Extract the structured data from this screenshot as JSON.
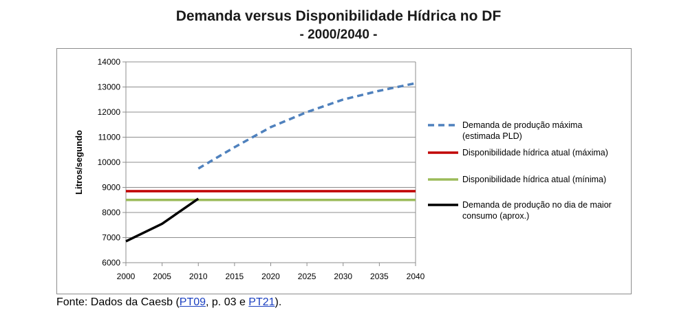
{
  "title": {
    "line1": "Demanda versus Disponibilidade Hídrica no DF",
    "line2": "- 2000/2040 -"
  },
  "source": {
    "prefix": "Fonte: Dados da Caesb (",
    "link1": "PT09",
    "middle": ", p. 03 e ",
    "link2": "PT21",
    "suffix": ")."
  },
  "chart_data": {
    "type": "line",
    "title": "Demanda versus Disponibilidade Hídrica no DF - 2000/2040 -",
    "xlabel": "",
    "ylabel": "Litros/segundo",
    "categories": [
      "2000",
      "2005",
      "2010",
      "2015",
      "2020",
      "2025",
      "2030",
      "2035",
      "2040"
    ],
    "ylim": [
      6000,
      14000
    ],
    "yticks": [
      6000,
      7000,
      8000,
      9000,
      10000,
      11000,
      12000,
      13000,
      14000
    ],
    "grid": "horizontal",
    "legend_position": "right",
    "series": [
      {
        "name": "Demanda de produção máxima (estimada PLD)",
        "legend_lines": [
          "Demanda de produção máxima",
          "(estimada PLD)"
        ],
        "color": "#4f81bd",
        "dash": "dashed",
        "x": [
          2010,
          2015,
          2020,
          2025,
          2030,
          2035,
          2040
        ],
        "y": [
          9750,
          10600,
          11400,
          12000,
          12500,
          12850,
          13150
        ]
      },
      {
        "name": "Disponibilidade hídrica atual (máxima)",
        "legend_lines": [
          "Disponibilidade hídrica atual (máxima)"
        ],
        "color": "#c00000",
        "dash": "solid",
        "x": [
          2000,
          2040
        ],
        "y": [
          8850,
          8850
        ]
      },
      {
        "name": "Disponibilidade hídrica atual (mínima)",
        "legend_lines": [
          "Disponibilidade hídrica atual (mínima)"
        ],
        "color": "#9bbb59",
        "dash": "solid",
        "x": [
          2000,
          2040
        ],
        "y": [
          8500,
          8500
        ]
      },
      {
        "name": "Demanda de produção no dia de maior consumo (aprox.)",
        "legend_lines": [
          "Demanda de produção no dia de maior",
          "consumo (aprox.)"
        ],
        "color": "#000000",
        "dash": "solid",
        "x": [
          2000,
          2005,
          2010
        ],
        "y": [
          6850,
          7550,
          8550
        ]
      }
    ]
  }
}
